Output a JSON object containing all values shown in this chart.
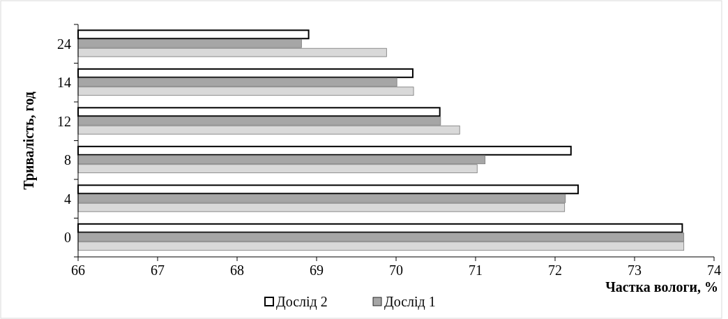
{
  "chart_data": {
    "type": "bar",
    "orientation": "horizontal",
    "xlabel": "Частка вологи, %",
    "ylabel": "Тривалість, год",
    "categories": [
      "24",
      "14",
      "12",
      "8",
      "4",
      "0"
    ],
    "series": [
      {
        "name": "Дослід 2",
        "color": "#ffffff",
        "values": [
          68.9,
          70.21,
          70.55,
          72.2,
          72.29,
          73.6
        ]
      },
      {
        "name": "Дослід 1",
        "color": "#a6a6a6",
        "values": [
          68.81,
          70.01,
          70.56,
          71.12,
          72.13,
          73.62
        ]
      },
      {
        "color": "#d9d9d9",
        "values": [
          69.88,
          70.22,
          70.8,
          71.02,
          72.12,
          73.62
        ]
      }
    ],
    "xlim": [
      66,
      74
    ],
    "xticks": [
      66,
      67,
      68,
      69,
      70,
      71,
      72,
      73,
      74
    ],
    "legend": "bottom",
    "grid": false
  }
}
